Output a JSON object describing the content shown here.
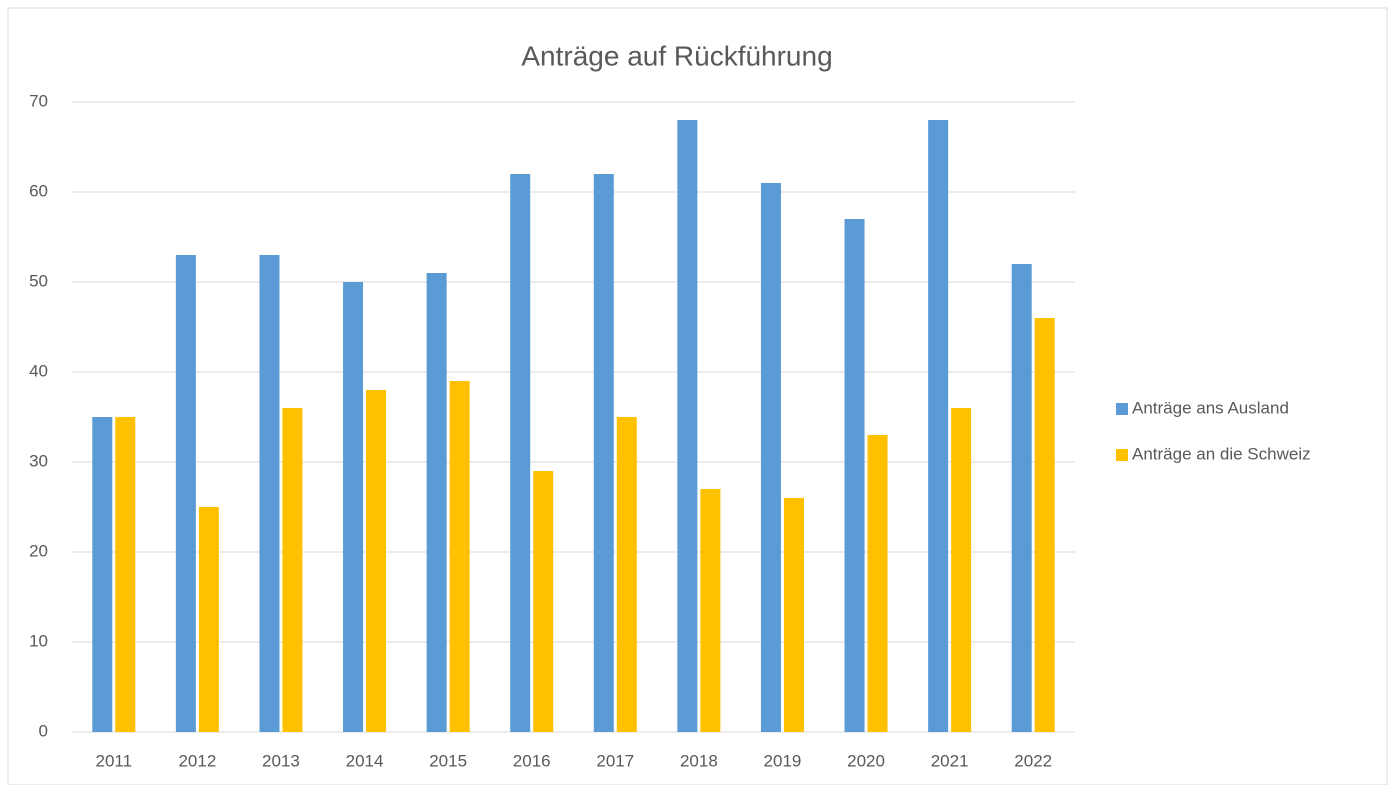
{
  "chart_data": {
    "type": "bar",
    "title": "Anträge auf Rückführung",
    "categories": [
      "2011",
      "2012",
      "2013",
      "2014",
      "2015",
      "2016",
      "2017",
      "2018",
      "2019",
      "2020",
      "2021",
      "2022"
    ],
    "series": [
      {
        "name": "Anträge ans Ausland",
        "color": "#5b9bd5",
        "values": [
          35,
          53,
          53,
          50,
          51,
          62,
          62,
          68,
          61,
          57,
          68,
          52
        ]
      },
      {
        "name": "Anträge an die Schweiz",
        "color": "#ffc000",
        "values": [
          35,
          25,
          36,
          38,
          39,
          29,
          35,
          27,
          26,
          33,
          36,
          46
        ]
      }
    ],
    "ylim": [
      0,
      70
    ],
    "yticks": [
      0,
      10,
      20,
      30,
      40,
      50,
      60,
      70
    ],
    "grid": true,
    "legend": "right"
  }
}
